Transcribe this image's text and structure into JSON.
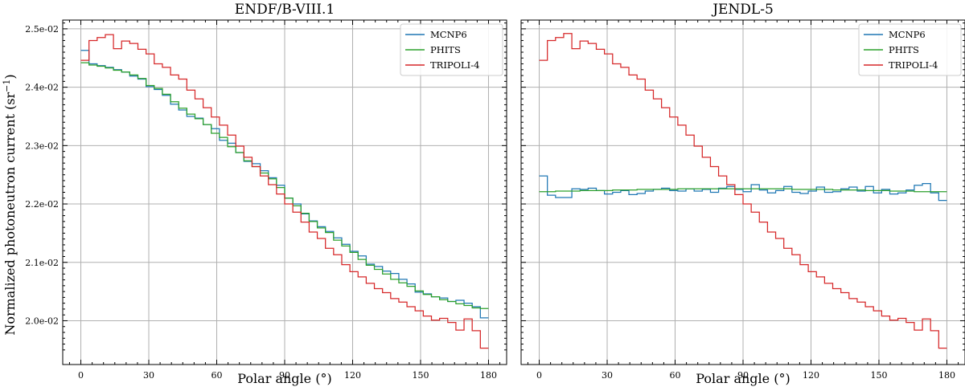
{
  "figure": {
    "ylabel_main": "Normalized photoneutron current (sr",
    "ylabel_sup": "−1",
    "ylabel_close": ")"
  },
  "colors": {
    "MCNP6": "#1f77b4",
    "PHITS": "#2ca02c",
    "TRIPOLI-4": "#d62728"
  },
  "chart_data": [
    {
      "type": "line",
      "step": true,
      "title": "ENDF/B-VIII.1",
      "xlabel": "Polar angle (°)",
      "ylabel": "Normalized photoneutron current (sr−1)",
      "xlim": [
        -8,
        188
      ],
      "ylim": [
        0.01925,
        0.02515
      ],
      "xticks": [
        0,
        30,
        60,
        90,
        120,
        150,
        180
      ],
      "xtick_labels": [
        "0",
        "30",
        "60",
        "90",
        "120",
        "150",
        "180"
      ],
      "yticks": [
        0.02,
        0.021,
        0.022,
        0.023,
        0.024,
        0.025
      ],
      "ytick_labels": [
        "2.0e-02",
        "2.1e-02",
        "2.2e-02",
        "2.3e-02",
        "2.4e-02",
        "2.5e-02"
      ],
      "grid": true,
      "legend": "top-right",
      "bin_edges": [
        0,
        3.6,
        7.2,
        10.8,
        14.4,
        18,
        21.6,
        25.2,
        28.8,
        32.4,
        36,
        39.6,
        43.2,
        46.8,
        50.4,
        54,
        57.6,
        61.2,
        64.8,
        68.4,
        72,
        75.6,
        79.2,
        82.8,
        86.4,
        90,
        93.6,
        97.2,
        100.8,
        104.4,
        108,
        111.6,
        115.2,
        118.8,
        122.4,
        126,
        129.6,
        133.2,
        136.8,
        140.4,
        144,
        147.6,
        151.2,
        154.8,
        158.4,
        162,
        165.6,
        169.2,
        172.8,
        176.4,
        180
      ],
      "series": [
        {
          "name": "MCNP6",
          "values": [
            0.02463,
            0.0244,
            0.02437,
            0.02434,
            0.0243,
            0.02426,
            0.02419,
            0.02414,
            0.02401,
            0.02396,
            0.02386,
            0.02371,
            0.02361,
            0.0235,
            0.02347,
            0.02336,
            0.02329,
            0.02309,
            0.02304,
            0.02288,
            0.02273,
            0.02269,
            0.02257,
            0.02245,
            0.02232,
            0.0221,
            0.022,
            0.02183,
            0.02171,
            0.02161,
            0.02153,
            0.02142,
            0.02131,
            0.02119,
            0.02111,
            0.02097,
            0.02093,
            0.02085,
            0.02081,
            0.02071,
            0.02063,
            0.02049,
            0.02046,
            0.02041,
            0.02039,
            0.02033,
            0.02035,
            0.0203,
            0.02024,
            0.02005
          ]
        },
        {
          "name": "PHITS",
          "values": [
            0.02442,
            0.02438,
            0.02436,
            0.02433,
            0.02429,
            0.02426,
            0.02421,
            0.02415,
            0.02403,
            0.02398,
            0.02388,
            0.02375,
            0.02364,
            0.02354,
            0.02346,
            0.02336,
            0.02321,
            0.02314,
            0.02298,
            0.02288,
            0.02274,
            0.02264,
            0.02253,
            0.02243,
            0.02228,
            0.0221,
            0.02197,
            0.02184,
            0.0217,
            0.02159,
            0.02151,
            0.02138,
            0.02128,
            0.02117,
            0.02105,
            0.02095,
            0.02088,
            0.0208,
            0.02071,
            0.02065,
            0.02059,
            0.02051,
            0.02045,
            0.02041,
            0.02036,
            0.02033,
            0.02029,
            0.02026,
            0.02022,
            0.02021
          ]
        },
        {
          "name": "TRIPOLI-4",
          "values": [
            0.02446,
            0.0248,
            0.02485,
            0.0249,
            0.02466,
            0.02479,
            0.02475,
            0.02465,
            0.02457,
            0.0244,
            0.02434,
            0.02421,
            0.02414,
            0.02395,
            0.0238,
            0.02365,
            0.02349,
            0.02335,
            0.02318,
            0.02299,
            0.0228,
            0.02264,
            0.02248,
            0.02233,
            0.02217,
            0.022,
            0.02186,
            0.02169,
            0.02152,
            0.02141,
            0.02124,
            0.02113,
            0.02096,
            0.02084,
            0.02075,
            0.02064,
            0.02055,
            0.02048,
            0.02038,
            0.02032,
            0.02024,
            0.02017,
            0.02008,
            0.02001,
            0.02004,
            0.01997,
            0.01984,
            0.02003,
            0.01983,
            0.01953
          ]
        }
      ]
    },
    {
      "type": "line",
      "step": true,
      "title": "JENDL-5",
      "xlabel": "Polar angle (°)",
      "ylabel": "",
      "xlim": [
        -8,
        188
      ],
      "ylim": [
        0.01925,
        0.02515
      ],
      "xticks": [
        0,
        30,
        60,
        90,
        120,
        150,
        180
      ],
      "xtick_labels": [
        "0",
        "30",
        "60",
        "90",
        "120",
        "150",
        "180"
      ],
      "yticks": [
        0.02,
        0.021,
        0.022,
        0.023,
        0.024,
        0.025
      ],
      "ytick_labels": [],
      "grid": true,
      "legend": "top-right",
      "bin_edges": [
        0,
        3.6,
        7.2,
        10.8,
        14.4,
        18,
        21.6,
        25.2,
        28.8,
        32.4,
        36,
        39.6,
        43.2,
        46.8,
        50.4,
        54,
        57.6,
        61.2,
        64.8,
        68.4,
        72,
        75.6,
        79.2,
        82.8,
        86.4,
        90,
        93.6,
        97.2,
        100.8,
        104.4,
        108,
        111.6,
        115.2,
        118.8,
        122.4,
        126,
        129.6,
        133.2,
        136.8,
        140.4,
        144,
        147.6,
        151.2,
        154.8,
        158.4,
        162,
        165.6,
        169.2,
        172.8,
        176.4,
        180
      ],
      "series": [
        {
          "name": "MCNP6",
          "values": [
            0.02248,
            0.02215,
            0.02211,
            0.02211,
            0.02226,
            0.02225,
            0.02227,
            0.02223,
            0.02217,
            0.0222,
            0.02223,
            0.02216,
            0.02218,
            0.02222,
            0.02225,
            0.02227,
            0.02223,
            0.02222,
            0.02226,
            0.02222,
            0.02225,
            0.0222,
            0.02227,
            0.0223,
            0.02225,
            0.02221,
            0.02233,
            0.02224,
            0.02219,
            0.02223,
            0.0223,
            0.0222,
            0.02218,
            0.02222,
            0.02229,
            0.0222,
            0.02221,
            0.02226,
            0.02229,
            0.02222,
            0.0223,
            0.02219,
            0.02225,
            0.02217,
            0.02219,
            0.02224,
            0.02232,
            0.02235,
            0.02219,
            0.02206
          ]
        },
        {
          "name": "PHITS",
          "values": [
            0.02221,
            0.02221,
            0.02222,
            0.02222,
            0.02222,
            0.02223,
            0.02223,
            0.02223,
            0.02223,
            0.02224,
            0.02224,
            0.02224,
            0.02225,
            0.02225,
            0.02225,
            0.02225,
            0.02225,
            0.02226,
            0.02226,
            0.02226,
            0.02226,
            0.02226,
            0.02226,
            0.02226,
            0.02226,
            0.02226,
            0.02226,
            0.02226,
            0.02226,
            0.02226,
            0.02226,
            0.02225,
            0.02225,
            0.02225,
            0.02225,
            0.02225,
            0.02224,
            0.02224,
            0.02224,
            0.02224,
            0.02223,
            0.02223,
            0.02223,
            0.02222,
            0.02222,
            0.02222,
            0.02221,
            0.02221,
            0.02221,
            0.02221
          ]
        },
        {
          "name": "TRIPOLI-4",
          "values": [
            0.02446,
            0.0248,
            0.02485,
            0.02492,
            0.02466,
            0.02479,
            0.02475,
            0.02465,
            0.02457,
            0.0244,
            0.02434,
            0.02421,
            0.02414,
            0.02395,
            0.0238,
            0.02365,
            0.02349,
            0.02335,
            0.02318,
            0.02299,
            0.0228,
            0.02264,
            0.02248,
            0.02233,
            0.02216,
            0.022,
            0.02186,
            0.02169,
            0.02152,
            0.02141,
            0.02124,
            0.02113,
            0.02096,
            0.02084,
            0.02075,
            0.02064,
            0.02055,
            0.02048,
            0.02038,
            0.02032,
            0.02024,
            0.02017,
            0.02008,
            0.02001,
            0.02004,
            0.01997,
            0.01984,
            0.02003,
            0.01983,
            0.01953
          ]
        }
      ]
    }
  ]
}
